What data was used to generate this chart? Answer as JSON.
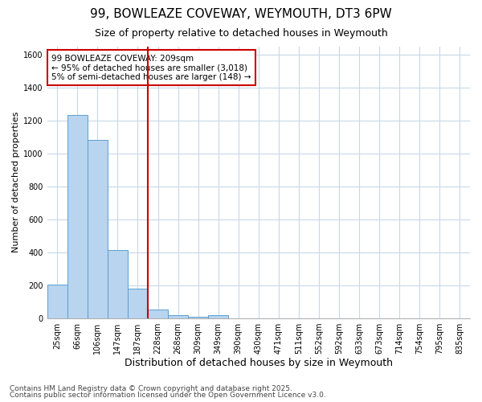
{
  "title1": "99, BOWLEAZE COVEWAY, WEYMOUTH, DT3 6PW",
  "title2": "Size of property relative to detached houses in Weymouth",
  "xlabel": "Distribution of detached houses by size in Weymouth",
  "ylabel": "Number of detached properties",
  "categories": [
    "25sqm",
    "66sqm",
    "106sqm",
    "147sqm",
    "187sqm",
    "228sqm",
    "268sqm",
    "309sqm",
    "349sqm",
    "390sqm",
    "430sqm",
    "471sqm",
    "511sqm",
    "552sqm",
    "592sqm",
    "633sqm",
    "673sqm",
    "714sqm",
    "754sqm",
    "795sqm",
    "835sqm"
  ],
  "values": [
    207,
    1235,
    1080,
    413,
    178,
    52,
    18,
    10,
    20,
    0,
    0,
    0,
    0,
    0,
    0,
    0,
    0,
    0,
    0,
    0,
    0
  ],
  "bar_color": "#b8d4ee",
  "bar_edge_color": "#5a9fd4",
  "red_line_index": 5,
  "annotation_text": "99 BOWLEAZE COVEWAY: 209sqm\n← 95% of detached houses are smaller (3,018)\n5% of semi-detached houses are larger (148) →",
  "annotation_box_color": "#ffffff",
  "annotation_box_edge_color": "#cc0000",
  "red_line_color": "#cc0000",
  "ylim": [
    0,
    1650
  ],
  "yticks": [
    0,
    200,
    400,
    600,
    800,
    1000,
    1200,
    1400,
    1600
  ],
  "footer1": "Contains HM Land Registry data © Crown copyright and database right 2025.",
  "footer2": "Contains public sector information licensed under the Open Government Licence v3.0.",
  "bg_color": "#ffffff",
  "plot_bg_color": "#ffffff",
  "grid_color": "#c8d8e8",
  "title1_fontsize": 11,
  "title2_fontsize": 9,
  "xlabel_fontsize": 9,
  "ylabel_fontsize": 8,
  "tick_fontsize": 7,
  "annotation_fontsize": 7.5,
  "footer_fontsize": 6.5
}
